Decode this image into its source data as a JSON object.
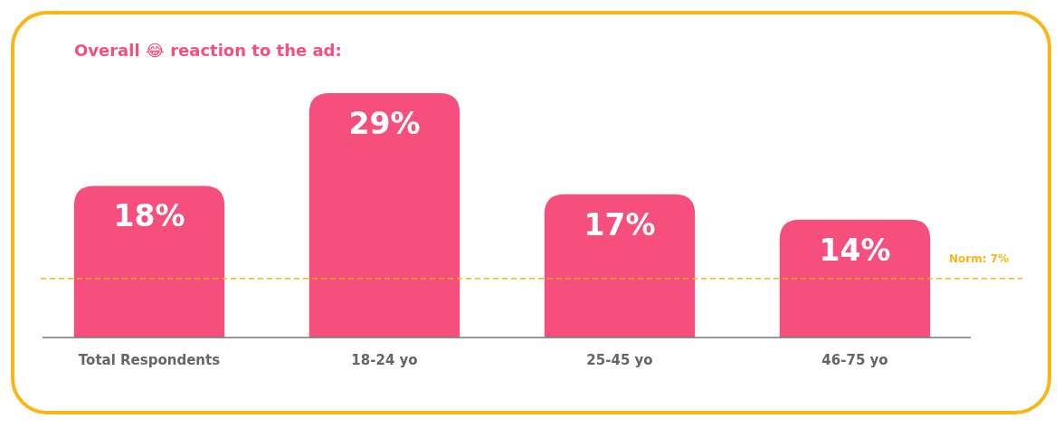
{
  "chart_data": {
    "type": "bar",
    "title": "Overall 😂 reaction to the ad:",
    "categories": [
      "Total Respondents",
      "18-24 yo",
      "25-45 yo",
      "46-75 yo"
    ],
    "values": [
      18,
      29,
      17,
      14
    ],
    "color": "#f74f7d",
    "value_labels": [
      "18%",
      "29%",
      "17%",
      "14%"
    ],
    "ref_lines": [
      {
        "axis": "y",
        "value": 7,
        "label": "Norm: 7%",
        "color": "#fbb615",
        "line_style": "dashed"
      }
    ]
  }
}
